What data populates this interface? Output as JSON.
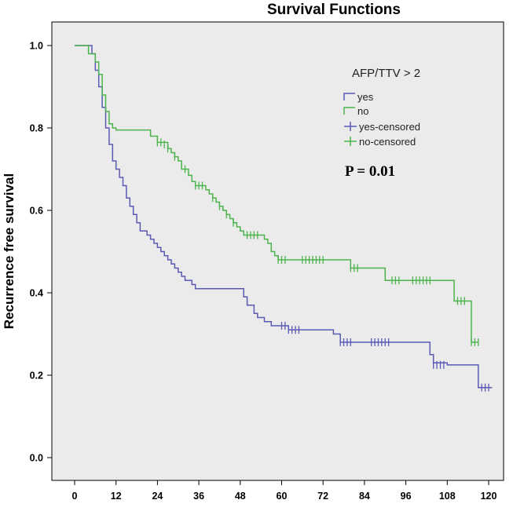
{
  "chart_data": {
    "type": "line",
    "title": "Survival Functions",
    "xlabel": "",
    "ylabel": "Recurrence free survival",
    "xlim": [
      0,
      120
    ],
    "ylim": [
      0,
      1.0
    ],
    "x_ticks": [
      0,
      12,
      24,
      36,
      48,
      60,
      72,
      84,
      96,
      108,
      120
    ],
    "y_ticks": [
      0.0,
      0.2,
      0.4,
      0.6,
      0.8,
      1.0
    ],
    "y_tick_labels": [
      "0.0",
      "0.2",
      "0.4",
      "0.6",
      "0.8",
      "1.0"
    ],
    "grid": false,
    "legend_title": "AFP/TTV > 2",
    "legend_position": "top-right",
    "legend_entries": [
      "yes",
      "no",
      "yes-censored",
      "no-censored"
    ],
    "annotation": "P = 0.01",
    "series": [
      {
        "name": "yes",
        "color": "#5a5ab4",
        "steps": [
          [
            0,
            1.0
          ],
          [
            5,
            0.98
          ],
          [
            6,
            0.94
          ],
          [
            7,
            0.9
          ],
          [
            8,
            0.85
          ],
          [
            9,
            0.8
          ],
          [
            10,
            0.76
          ],
          [
            11,
            0.72
          ],
          [
            12,
            0.7
          ],
          [
            13,
            0.68
          ],
          [
            14,
            0.66
          ],
          [
            15,
            0.63
          ],
          [
            16,
            0.61
          ],
          [
            17,
            0.59
          ],
          [
            18,
            0.57
          ],
          [
            19,
            0.55
          ],
          [
            21,
            0.54
          ],
          [
            22,
            0.53
          ],
          [
            23,
            0.52
          ],
          [
            24,
            0.51
          ],
          [
            25,
            0.5
          ],
          [
            26,
            0.49
          ],
          [
            27,
            0.48
          ],
          [
            28,
            0.47
          ],
          [
            29,
            0.46
          ],
          [
            30,
            0.45
          ],
          [
            31,
            0.44
          ],
          [
            32,
            0.43
          ],
          [
            34,
            0.42
          ],
          [
            35,
            0.41
          ],
          [
            47,
            0.41
          ],
          [
            49,
            0.39
          ],
          [
            50,
            0.37
          ],
          [
            52,
            0.35
          ],
          [
            53,
            0.34
          ],
          [
            55,
            0.33
          ],
          [
            57,
            0.32
          ],
          [
            62,
            0.31
          ],
          [
            67,
            0.31
          ],
          [
            75,
            0.3
          ],
          [
            77,
            0.28
          ],
          [
            102,
            0.28
          ],
          [
            103,
            0.25
          ],
          [
            104,
            0.23
          ],
          [
            108,
            0.225
          ],
          [
            116,
            0.225
          ],
          [
            117,
            0.17
          ],
          [
            121,
            0.17
          ]
        ],
        "censored": [
          [
            60,
            0.32
          ],
          [
            61,
            0.32
          ],
          [
            62,
            0.31
          ],
          [
            63,
            0.31
          ],
          [
            64,
            0.31
          ],
          [
            65,
            0.31
          ],
          [
            77,
            0.28
          ],
          [
            78,
            0.28
          ],
          [
            79,
            0.28
          ],
          [
            80,
            0.28
          ],
          [
            86,
            0.28
          ],
          [
            87,
            0.28
          ],
          [
            88,
            0.28
          ],
          [
            89,
            0.28
          ],
          [
            90,
            0.28
          ],
          [
            91,
            0.28
          ],
          [
            104,
            0.225
          ],
          [
            105,
            0.225
          ],
          [
            106,
            0.225
          ],
          [
            107,
            0.225
          ],
          [
            118,
            0.17
          ],
          [
            119,
            0.17
          ],
          [
            120,
            0.17
          ]
        ]
      },
      {
        "name": "no",
        "color": "#4cb44c",
        "steps": [
          [
            0,
            1.0
          ],
          [
            4,
            0.98
          ],
          [
            6,
            0.96
          ],
          [
            7,
            0.93
          ],
          [
            8,
            0.88
          ],
          [
            9,
            0.84
          ],
          [
            10,
            0.81
          ],
          [
            11,
            0.8
          ],
          [
            12,
            0.795
          ],
          [
            20,
            0.795
          ],
          [
            22,
            0.78
          ],
          [
            24,
            0.765
          ],
          [
            27,
            0.75
          ],
          [
            28,
            0.74
          ],
          [
            29,
            0.73
          ],
          [
            30,
            0.72
          ],
          [
            31,
            0.7
          ],
          [
            33,
            0.685
          ],
          [
            34,
            0.67
          ],
          [
            35,
            0.66
          ],
          [
            38,
            0.65
          ],
          [
            39,
            0.64
          ],
          [
            40,
            0.63
          ],
          [
            41,
            0.62
          ],
          [
            42,
            0.61
          ],
          [
            43,
            0.6
          ],
          [
            44,
            0.59
          ],
          [
            45,
            0.58
          ],
          [
            46,
            0.57
          ],
          [
            47,
            0.56
          ],
          [
            48,
            0.55
          ],
          [
            49,
            0.54
          ],
          [
            55,
            0.53
          ],
          [
            56,
            0.52
          ],
          [
            57,
            0.5
          ],
          [
            58,
            0.49
          ],
          [
            59,
            0.48
          ],
          [
            79,
            0.48
          ],
          [
            80,
            0.46
          ],
          [
            82,
            0.46
          ],
          [
            90,
            0.43
          ],
          [
            109,
            0.43
          ],
          [
            110,
            0.38
          ],
          [
            114,
            0.38
          ],
          [
            115,
            0.28
          ],
          [
            117,
            0.28
          ]
        ],
        "censored": [
          [
            24,
            0.765
          ],
          [
            25,
            0.765
          ],
          [
            26,
            0.76
          ],
          [
            27,
            0.75
          ],
          [
            29,
            0.73
          ],
          [
            32,
            0.7
          ],
          [
            35,
            0.66
          ],
          [
            36,
            0.66
          ],
          [
            37,
            0.66
          ],
          [
            40,
            0.63
          ],
          [
            42,
            0.61
          ],
          [
            44,
            0.59
          ],
          [
            46,
            0.57
          ],
          [
            50,
            0.54
          ],
          [
            51,
            0.54
          ],
          [
            52,
            0.54
          ],
          [
            53,
            0.54
          ],
          [
            59,
            0.48
          ],
          [
            60,
            0.48
          ],
          [
            61,
            0.48
          ],
          [
            66,
            0.48
          ],
          [
            67,
            0.48
          ],
          [
            68,
            0.48
          ],
          [
            69,
            0.48
          ],
          [
            70,
            0.48
          ],
          [
            71,
            0.48
          ],
          [
            72,
            0.48
          ],
          [
            80,
            0.46
          ],
          [
            81,
            0.46
          ],
          [
            82,
            0.46
          ],
          [
            92,
            0.43
          ],
          [
            93,
            0.43
          ],
          [
            94,
            0.43
          ],
          [
            98,
            0.43
          ],
          [
            99,
            0.43
          ],
          [
            100,
            0.43
          ],
          [
            101,
            0.43
          ],
          [
            102,
            0.43
          ],
          [
            103,
            0.43
          ],
          [
            111,
            0.38
          ],
          [
            112,
            0.38
          ],
          [
            113,
            0.38
          ],
          [
            115,
            0.28
          ],
          [
            116,
            0.28
          ],
          [
            117,
            0.28
          ]
        ]
      }
    ]
  }
}
